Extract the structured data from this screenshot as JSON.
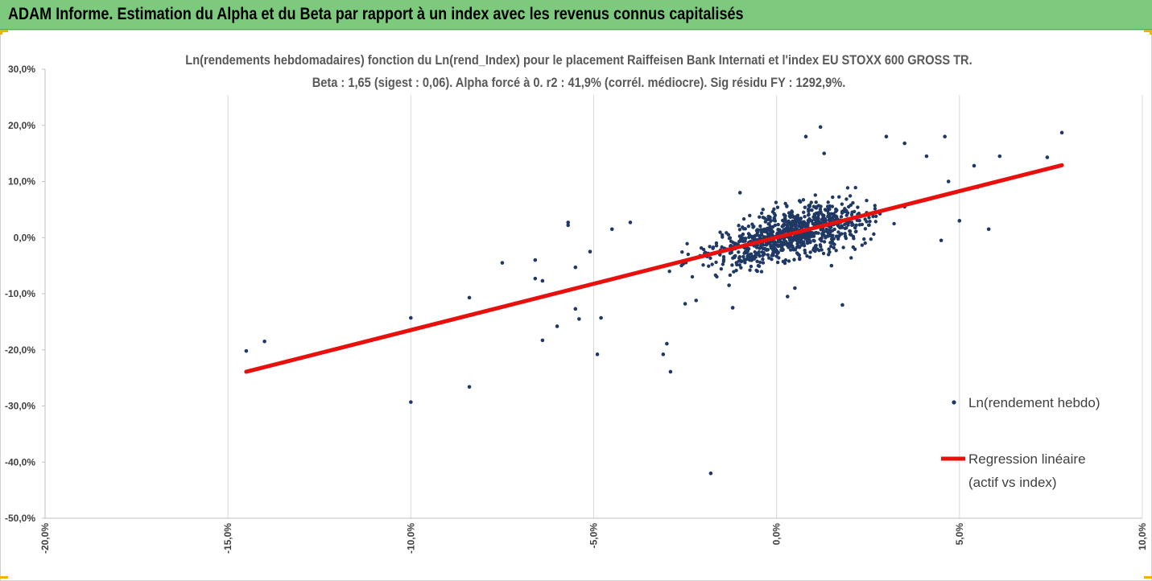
{
  "banner": {
    "title": "ADAM Informe. Estimation du Alpha et du Beta par rapport à un index avec les revenus connus capitalisés"
  },
  "colors": {
    "banner_bg": "#7dc97d",
    "corner_accent": "#f0b400",
    "scatter": "#1f3864",
    "regression": "#e8100c",
    "grid": "#d9d9d9"
  },
  "chart_data": {
    "type": "scatter",
    "title_lines": [
      "Ln(rendements hebdomadaires) fonction du Ln(rend_Index) pour le placement Raiffeisen Bank Internati et l'index EU STOXX 600 GROSS TR.",
      "Beta : 1,65 (sigest : 0,06). Alpha forcé à 0. r2 : 41,9% (corrél. médiocre). Sig résidu FY : 1292,9%."
    ],
    "xlim": [
      -0.2,
      0.1
    ],
    "ylim": [
      -0.5,
      0.3
    ],
    "x_ticks": [
      -0.2,
      -0.15,
      -0.1,
      -0.05,
      0.0,
      0.05,
      0.1
    ],
    "x_tick_labels": [
      "-20,0%",
      "-15,0%",
      "-10,0%",
      "-5,0%",
      "0,0%",
      "5,0%",
      "10,0%"
    ],
    "y_ticks": [
      0.3,
      0.2,
      0.1,
      0.0,
      -0.1,
      -0.2,
      -0.3,
      -0.4,
      -0.5
    ],
    "y_tick_labels": [
      "30,0%",
      "20,0%",
      "10,0%",
      "0,0%",
      "-10,0%",
      "-20,0%",
      "-30,0%",
      "-40,0%",
      "-50,0%"
    ],
    "grid": "vertical",
    "legend_position": "right",
    "series": [
      {
        "name": "Ln(rendement hebdo)",
        "kind": "scatter",
        "points": [
          [
            -0.145,
            -0.202
          ],
          [
            -0.14,
            -0.185
          ],
          [
            -0.1,
            -0.293
          ],
          [
            -0.1,
            -0.143
          ],
          [
            -0.084,
            -0.107
          ],
          [
            -0.084,
            -0.266
          ],
          [
            -0.075,
            -0.045
          ],
          [
            -0.066,
            -0.04
          ],
          [
            -0.066,
            -0.073
          ],
          [
            -0.064,
            -0.077
          ],
          [
            -0.064,
            -0.183
          ],
          [
            -0.06,
            -0.158
          ],
          [
            -0.057,
            0.022
          ],
          [
            -0.057,
            0.027
          ],
          [
            -0.055,
            -0.053
          ],
          [
            -0.055,
            -0.127
          ],
          [
            -0.054,
            -0.145
          ],
          [
            -0.051,
            -0.025
          ],
          [
            -0.049,
            -0.208
          ],
          [
            -0.048,
            -0.143
          ],
          [
            -0.045,
            0.015
          ],
          [
            -0.04,
            0.027
          ],
          [
            -0.031,
            -0.208
          ],
          [
            -0.03,
            -0.189
          ],
          [
            -0.029,
            -0.239
          ],
          [
            -0.025,
            -0.118
          ],
          [
            -0.022,
            -0.112
          ],
          [
            -0.018,
            -0.42
          ],
          [
            -0.013,
            -0.085
          ],
          [
            -0.012,
            -0.125
          ],
          [
            -0.01,
            0.08
          ],
          [
            0.003,
            -0.105
          ],
          [
            0.005,
            -0.09
          ],
          [
            0.008,
            0.18
          ],
          [
            0.012,
            0.197
          ],
          [
            0.013,
            0.15
          ],
          [
            0.015,
            -0.05
          ],
          [
            0.018,
            -0.12
          ],
          [
            0.03,
            0.18
          ],
          [
            0.035,
            0.168
          ],
          [
            0.035,
            0.055
          ],
          [
            0.041,
            0.145
          ],
          [
            0.046,
            0.18
          ],
          [
            0.045,
            -0.005
          ],
          [
            0.047,
            0.1
          ],
          [
            0.05,
            0.03
          ],
          [
            0.054,
            0.128
          ],
          [
            0.055,
            0.09
          ],
          [
            0.058,
            0.015
          ],
          [
            0.061,
            0.145
          ],
          [
            0.074,
            0.143
          ],
          [
            0.078,
            0.187
          ]
        ],
        "cluster": {
          "center": [
            0.004,
            0.005
          ],
          "count": 880,
          "description": "dense cloud of weekly returns between about -4% and +4% on the index axis"
        }
      },
      {
        "name": "Regression linéaire (actif vs index)",
        "name_lines": [
          "Regression linéaire",
          "(actif vs index)"
        ],
        "kind": "line",
        "x": [
          -0.145,
          0.078
        ],
        "y": [
          -0.239,
          0.129
        ]
      }
    ],
    "beta": 1.65
  }
}
